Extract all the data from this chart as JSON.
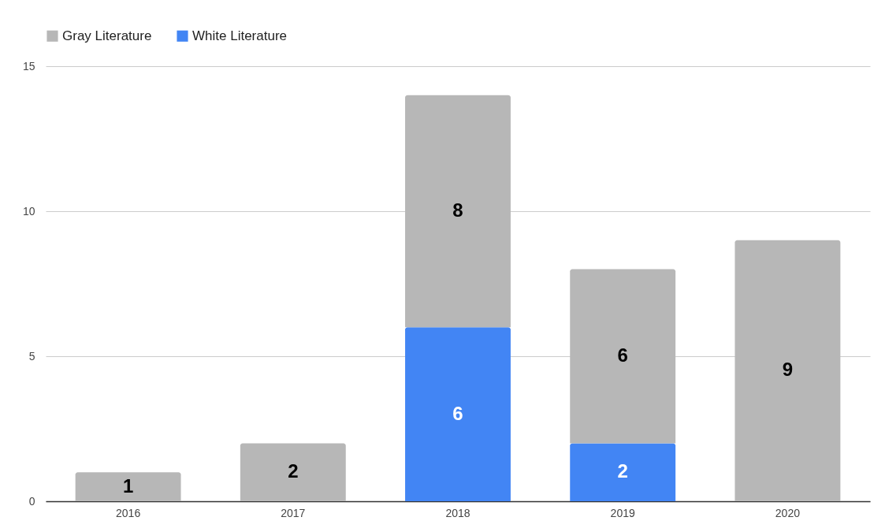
{
  "chart_data": {
    "type": "bar",
    "stacked": true,
    "categories": [
      "2016",
      "2017",
      "2018",
      "2019",
      "2020"
    ],
    "series": [
      {
        "name": "White Literature",
        "color": "#4285f4",
        "values": [
          null,
          null,
          6,
          2,
          null
        ]
      },
      {
        "name": "Gray Literature",
        "color": "#b7b7b7",
        "values": [
          1,
          2,
          8,
          6,
          9
        ]
      }
    ],
    "ylim": [
      0,
      15
    ],
    "yticks": [
      0,
      5,
      10,
      15
    ],
    "grid": "y",
    "legend": "top",
    "data_labels": true
  }
}
